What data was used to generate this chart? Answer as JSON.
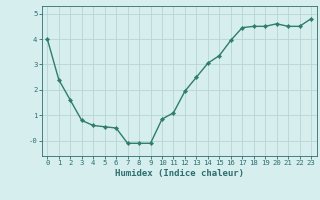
{
  "x": [
    0,
    1,
    2,
    3,
    4,
    5,
    6,
    7,
    8,
    9,
    10,
    11,
    12,
    13,
    14,
    15,
    16,
    17,
    18,
    19,
    20,
    21,
    22,
    23
  ],
  "y": [
    4.0,
    2.4,
    1.6,
    0.8,
    0.6,
    0.55,
    0.5,
    -0.1,
    -0.1,
    -0.1,
    0.85,
    1.1,
    1.95,
    2.5,
    3.05,
    3.35,
    3.95,
    4.45,
    4.5,
    4.5,
    4.6,
    4.5,
    4.5,
    4.8
  ],
  "line_color": "#2e7d6e",
  "marker": "D",
  "marker_size": 2.2,
  "bg_color": "#d6eeee",
  "grid_color": "#b8d4d4",
  "xlabel": "Humidex (Indice chaleur)",
  "ylim": [
    -0.6,
    5.3
  ],
  "xlim": [
    -0.5,
    23.5
  ],
  "yticks": [
    0,
    1,
    2,
    3,
    4,
    5
  ],
  "ytick_labels": [
    "-0",
    "1",
    "2",
    "3",
    "4",
    "5"
  ],
  "xticks": [
    0,
    1,
    2,
    3,
    4,
    5,
    6,
    7,
    8,
    9,
    10,
    11,
    12,
    13,
    14,
    15,
    16,
    17,
    18,
    19,
    20,
    21,
    22,
    23
  ],
  "tick_color": "#2e6e6e",
  "font_color": "#2e6e6e",
  "xlabel_fontsize": 6.5,
  "tick_fontsize": 5.2,
  "linewidth": 1.0
}
